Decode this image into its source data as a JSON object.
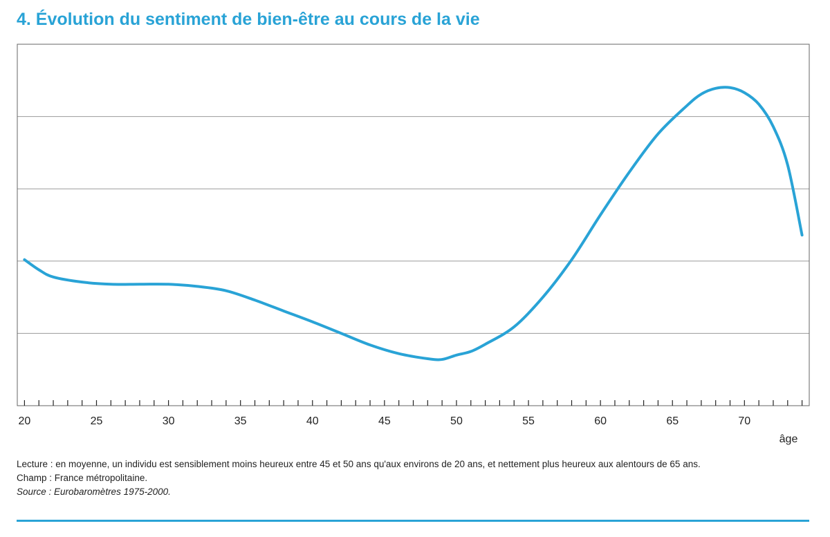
{
  "title": "4. Évolution du sentiment de bien-être au cours de la vie",
  "notes": {
    "lecture": "Lecture : en moyenne, un individu est sensiblement moins heureux entre 45 et 50 ans qu'aux environs de 20 ans, et nettement plus heureux aux alentours de 65 ans.",
    "champ": "Champ : France métropolitaine.",
    "source": "Source : Eurobaromètres 1975-2000."
  },
  "colors": {
    "accent": "#29a3d6",
    "line": "#29a3d6",
    "grid": "#9a9a9a"
  },
  "chart_data": {
    "type": "line",
    "title": "4. Évolution du sentiment de bien-être au cours de la vie",
    "xlabel": "âge",
    "ylabel": "",
    "xlim": [
      19.5,
      74.5
    ],
    "ylim": [
      0,
      5
    ],
    "x_ticks": [
      20,
      25,
      30,
      35,
      40,
      45,
      50,
      55,
      60,
      65,
      70
    ],
    "y_gridlines": [
      1,
      2,
      3,
      4
    ],
    "grid": true,
    "legend": "none",
    "series": [
      {
        "x": [
          20,
          21,
          22,
          24,
          26,
          28,
          30,
          32,
          34,
          36,
          38,
          40,
          42,
          44,
          46,
          48,
          49,
          50,
          51,
          52,
          54,
          56,
          58,
          60,
          62,
          64,
          66,
          67,
          68,
          69,
          70,
          71,
          72,
          73,
          74
        ],
        "y": [
          2.02,
          1.88,
          1.78,
          1.71,
          1.68,
          1.68,
          1.68,
          1.65,
          1.59,
          1.46,
          1.31,
          1.16,
          1.0,
          0.84,
          0.72,
          0.65,
          0.64,
          0.7,
          0.75,
          0.85,
          1.09,
          1.5,
          2.02,
          2.64,
          3.23,
          3.76,
          4.15,
          4.31,
          4.39,
          4.4,
          4.33,
          4.17,
          3.86,
          3.33,
          2.36
        ]
      }
    ]
  }
}
